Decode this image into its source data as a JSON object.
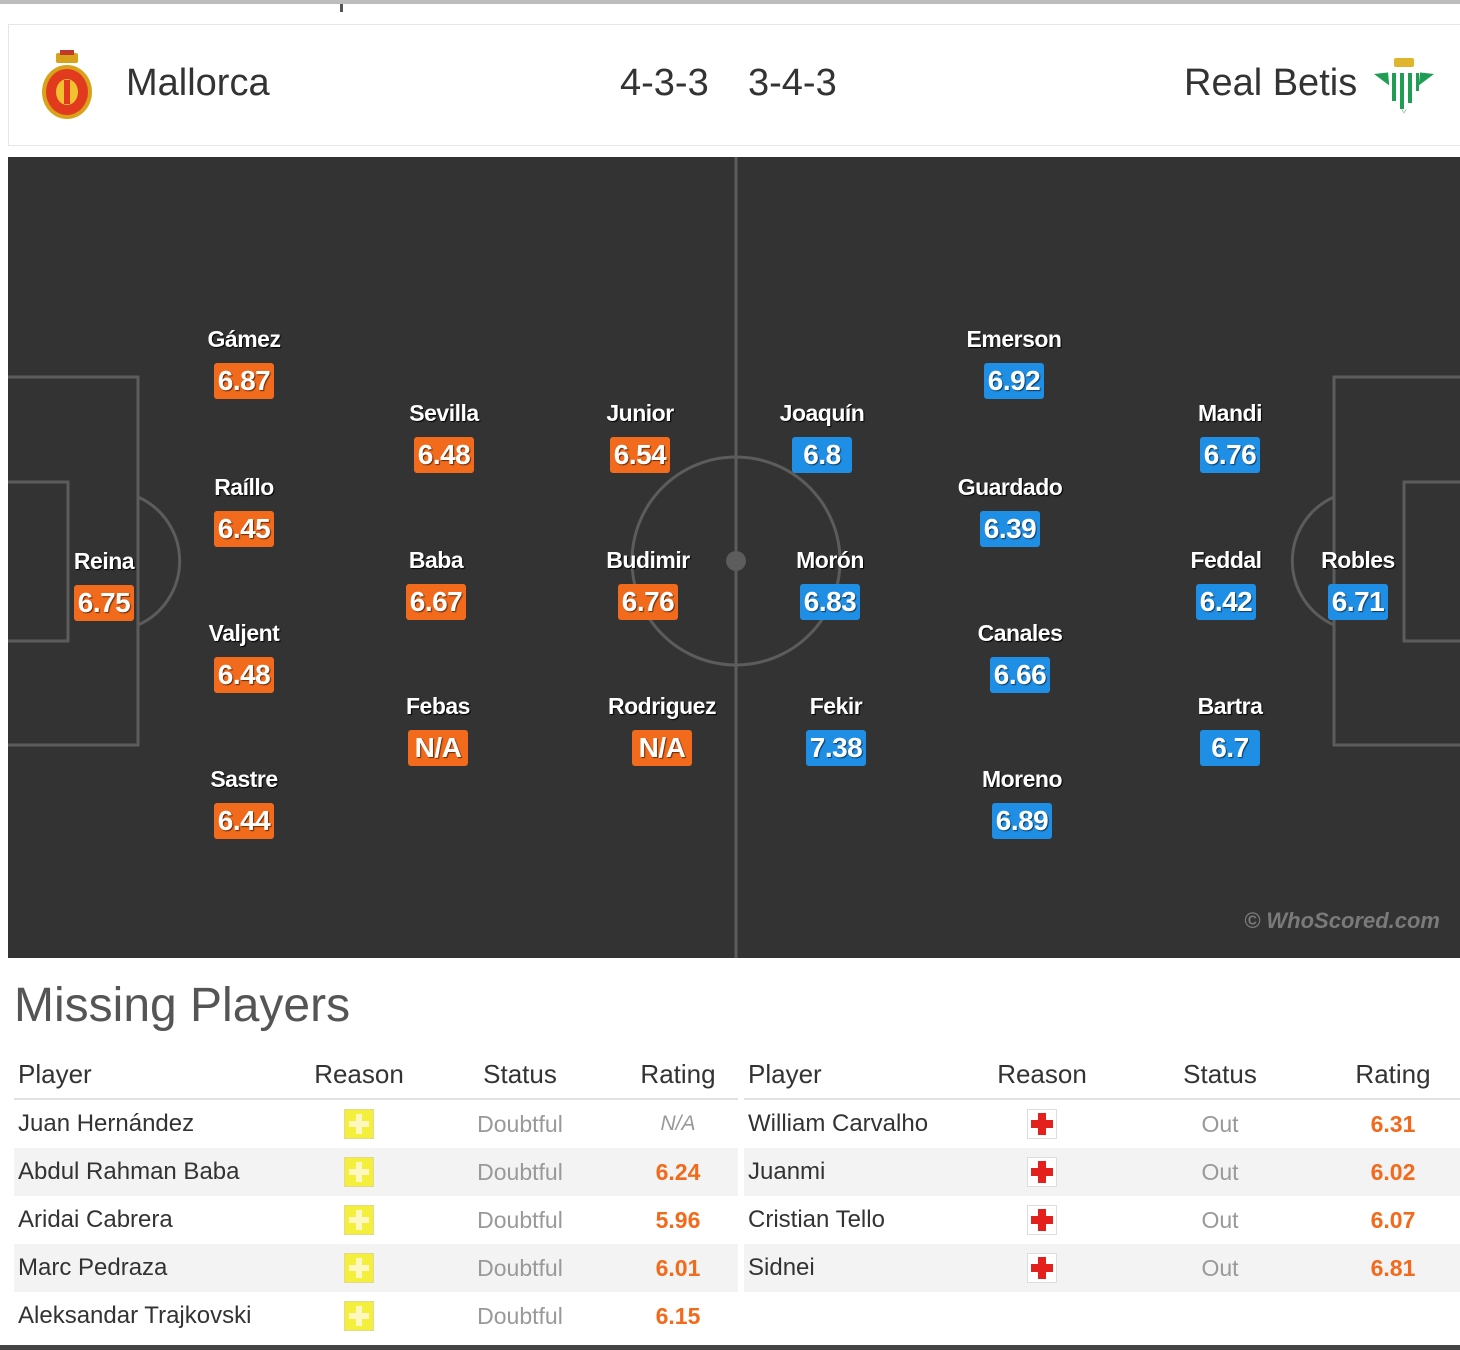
{
  "match": {
    "home": {
      "name": "Mallorca",
      "formation": "4-3-3",
      "crest_icon": "mallorca-crest-icon",
      "rating_color": "#f26a1b"
    },
    "away": {
      "name": "Real Betis",
      "formation": "3-4-3",
      "crest_icon": "real-betis-crest-icon",
      "rating_color": "#1f8fe6"
    }
  },
  "pitch": {
    "background": "#333333",
    "watermark": "© WhoScored.com",
    "home_players": [
      {
        "name": "Reina",
        "rating": "6.75"
      },
      {
        "name": "Gámez",
        "rating": "6.87"
      },
      {
        "name": "Raíllo",
        "rating": "6.45"
      },
      {
        "name": "Valjent",
        "rating": "6.48"
      },
      {
        "name": "Sastre",
        "rating": "6.44"
      },
      {
        "name": "Sevilla",
        "rating": "6.48"
      },
      {
        "name": "Baba",
        "rating": "6.67"
      },
      {
        "name": "Febas",
        "rating": "N/A"
      },
      {
        "name": "Junior",
        "rating": "6.54"
      },
      {
        "name": "Budimir",
        "rating": "6.76"
      },
      {
        "name": "Rodriguez",
        "rating": "N/A"
      }
    ],
    "away_players": [
      {
        "name": "Joaquín",
        "rating": "6.8"
      },
      {
        "name": "Morón",
        "rating": "6.83"
      },
      {
        "name": "Fekir",
        "rating": "7.38"
      },
      {
        "name": "Emerson",
        "rating": "6.92"
      },
      {
        "name": "Guardado",
        "rating": "6.39"
      },
      {
        "name": "Canales",
        "rating": "6.66"
      },
      {
        "name": "Moreno",
        "rating": "6.89"
      },
      {
        "name": "Mandi",
        "rating": "6.76"
      },
      {
        "name": "Feddal",
        "rating": "6.42"
      },
      {
        "name": "Bartra",
        "rating": "6.7"
      },
      {
        "name": "Robles",
        "rating": "6.71"
      }
    ]
  },
  "missing": {
    "title": "Missing Players",
    "headers": {
      "player": "Player",
      "reason": "Reason",
      "status": "Status",
      "rating": "Rating"
    },
    "home": [
      {
        "player": "Juan Hernández",
        "reason": "doubtful-icon",
        "status": "Doubtful",
        "rating": "N/A"
      },
      {
        "player": "Abdul Rahman Baba",
        "reason": "doubtful-icon",
        "status": "Doubtful",
        "rating": "6.24"
      },
      {
        "player": "Aridai Cabrera",
        "reason": "doubtful-icon",
        "status": "Doubtful",
        "rating": "5.96"
      },
      {
        "player": "Marc Pedraza",
        "reason": "doubtful-icon",
        "status": "Doubtful",
        "rating": "6.01"
      },
      {
        "player": "Aleksandar Trajkovski",
        "reason": "doubtful-icon",
        "status": "Doubtful",
        "rating": "6.15"
      }
    ],
    "away": [
      {
        "player": "William Carvalho",
        "reason": "injury-icon",
        "status": "Out",
        "rating": "6.31"
      },
      {
        "player": "Juanmi",
        "reason": "injury-icon",
        "status": "Out",
        "rating": "6.02"
      },
      {
        "player": "Cristian Tello",
        "reason": "injury-icon",
        "status": "Out",
        "rating": "6.07"
      },
      {
        "player": "Sidnei",
        "reason": "injury-icon",
        "status": "Out",
        "rating": "6.81"
      }
    ]
  }
}
